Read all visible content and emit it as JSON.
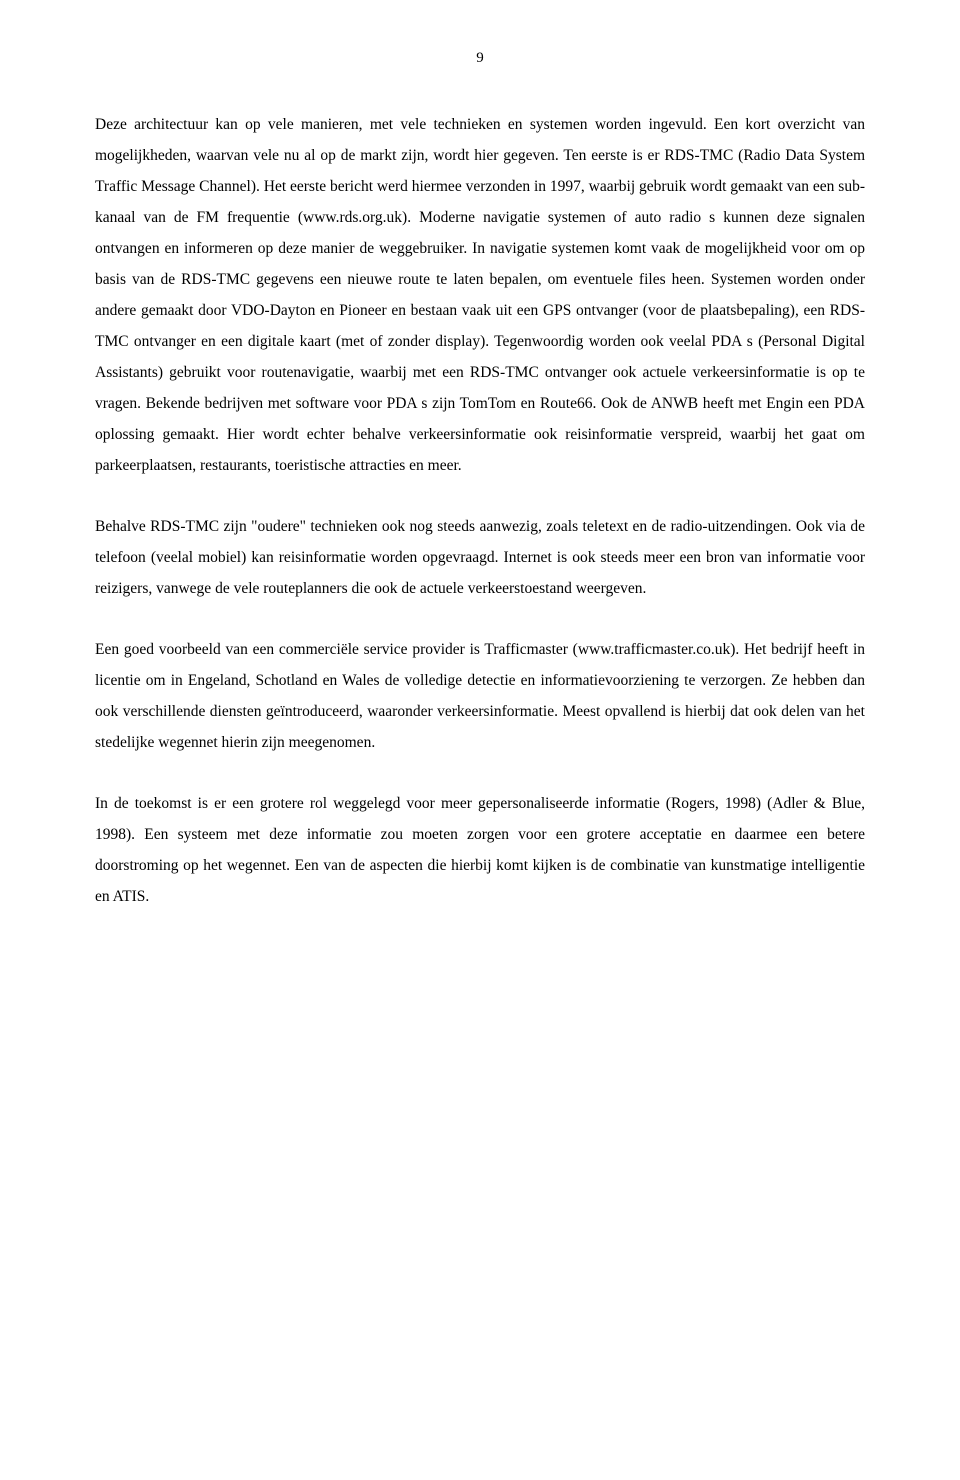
{
  "page": {
    "number": "9"
  },
  "paragraphs": {
    "p1": "Deze architectuur kan op vele manieren, met vele technieken en systemen worden ingevuld. Een kort overzicht van mogelijkheden, waarvan vele nu al op de markt zijn, wordt hier gegeven. Ten eerste is er RDS-TMC (Radio Data System Traffic Message Channel). Het eerste bericht werd hiermee verzonden in 1997, waarbij gebruik wordt gemaakt van een sub-kanaal van de FM frequentie (www.rds.org.uk). Moderne navigatie systemen of auto radio s kunnen deze signalen ontvangen en informeren op deze manier de weggebruiker. In navigatie systemen komt vaak de mogelijkheid voor om op basis van de RDS-TMC gegevens een nieuwe route te laten bepalen, om eventuele files heen. Systemen worden onder andere gemaakt door VDO-Dayton en Pioneer en bestaan vaak uit een GPS ontvanger (voor de plaatsbepaling), een RDS-TMC ontvanger en een digitale kaart (met of zonder display). Tegenwoordig worden ook veelal PDA s (Personal Digital Assistants) gebruikt voor routenavigatie, waarbij met een RDS-TMC ontvanger ook actuele verkeersinformatie is op te vragen. Bekende bedrijven met software voor PDA s zijn TomTom en Route66. Ook de ANWB heeft met Engin een PDA oplossing gemaakt. Hier wordt echter behalve verkeersinformatie ook reisinformatie verspreid, waarbij het gaat om parkeerplaatsen, restaurants, toeristische attracties en meer.",
    "p2": "Behalve RDS-TMC zijn \"oudere\" technieken ook nog steeds aanwezig, zoals teletext en de radio-uitzendingen. Ook via de telefoon (veelal mobiel) kan reisinformatie worden opgevraagd. Internet is ook steeds meer een bron van informatie voor reizigers, vanwege de vele routeplanners die ook de actuele verkeerstoestand weergeven.",
    "p3": "Een goed voorbeeld van een commerciële service provider is Trafficmaster (www.trafficmaster.co.uk). Het bedrijf heeft in licentie om in Engeland, Schotland en Wales de volledige detectie en informatievoorziening te verzorgen. Ze hebben dan ook verschillende diensten geïntroduceerd, waaronder verkeersinformatie. Meest opvallend is hierbij dat ook delen van het stedelijke wegennet hierin zijn meegenomen.",
    "p4": "In de toekomst is er een grotere rol weggelegd voor meer gepersonaliseerde informatie (Rogers, 1998) (Adler & Blue, 1998). Een systeem met deze informatie zou moeten zorgen voor een grotere acceptatie en daarmee een betere doorstroming op het wegennet. Een van de aspecten die hierbij komt kijken is de combinatie van kunstmatige intelligentie en ATIS."
  }
}
